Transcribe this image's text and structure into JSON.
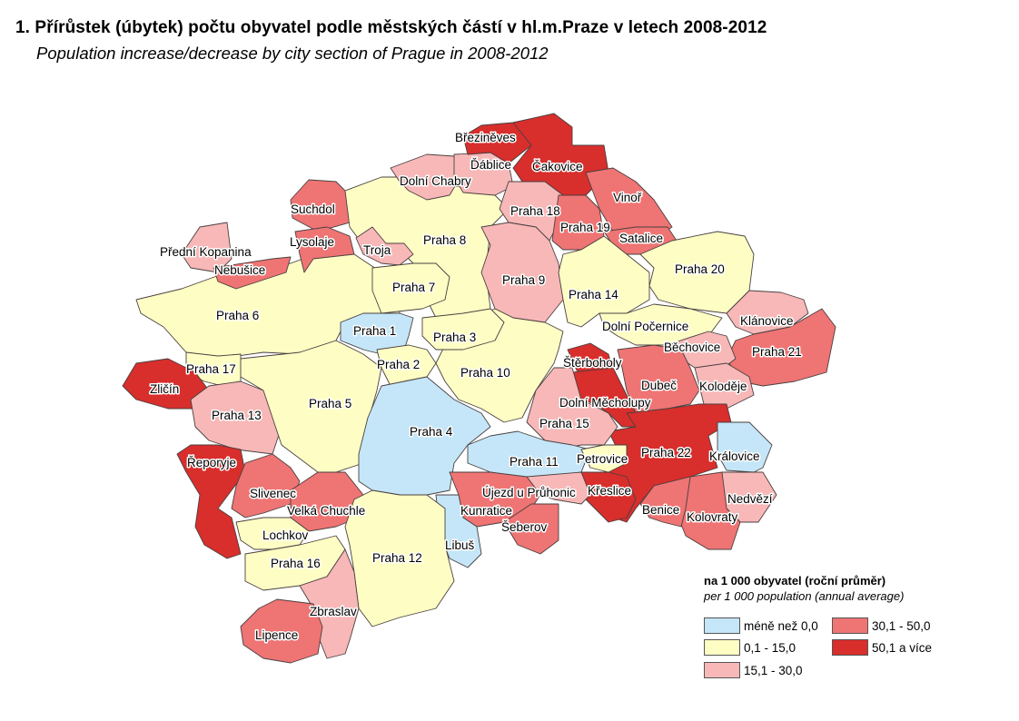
{
  "title": "1. Přírůstek (úbytek) počtu obyvatel podle městských částí v hl.m.Praze v letech 2008-2012",
  "subtitle": "Population increase/decrease by city section of Prague in 2008-2012",
  "legend": {
    "title": "na 1 000 obyvatel (roční průměr)",
    "subtitle": "per 1 000 population (annual average)",
    "classes": [
      {
        "label": "méně než 0,0",
        "color": "#c4e6f8"
      },
      {
        "label": "0,1 - 15,0",
        "color": "#fefec4"
      },
      {
        "label": "15,1 - 30,0",
        "color": "#f8b8b8"
      },
      {
        "label": "30,1 - 50,0",
        "color": "#ef7474"
      },
      {
        "label": "50,1 a více",
        "color": "#d82e2c"
      }
    ]
  },
  "districts": [
    {
      "name": "Praha 6",
      "class": 1
    },
    {
      "name": "Přední Kopanina",
      "class": 2
    },
    {
      "name": "Nebušice",
      "class": 3
    },
    {
      "name": "Suchdol",
      "class": 3
    },
    {
      "name": "Lysolaje",
      "class": 3
    },
    {
      "name": "Praha 8",
      "class": 1
    },
    {
      "name": "Troja",
      "class": 2
    },
    {
      "name": "Praha 7",
      "class": 1
    },
    {
      "name": "Dolní Chabry",
      "class": 2
    },
    {
      "name": "Ďáblice",
      "class": 2
    },
    {
      "name": "Březiněves",
      "class": 4
    },
    {
      "name": "Čakovice",
      "class": 4
    },
    {
      "name": "Praha 18",
      "class": 2
    },
    {
      "name": "Praha 9",
      "class": 2
    },
    {
      "name": "Praha 19",
      "class": 3
    },
    {
      "name": "Vinoř",
      "class": 3
    },
    {
      "name": "Satalice",
      "class": 3
    },
    {
      "name": "Praha 20",
      "class": 1
    },
    {
      "name": "Praha 14",
      "class": 1
    },
    {
      "name": "Klánovice",
      "class": 2
    },
    {
      "name": "Praha 21",
      "class": 3
    },
    {
      "name": "Dolní Počernice",
      "class": 1
    },
    {
      "name": "Běchovice",
      "class": 2
    },
    {
      "name": "Koloděje",
      "class": 2
    },
    {
      "name": "Dubeč",
      "class": 3
    },
    {
      "name": "Štěrboholy",
      "class": 4
    },
    {
      "name": "Dolní Měcholupy",
      "class": 4
    },
    {
      "name": "Praha 22",
      "class": 4
    },
    {
      "name": "Královice",
      "class": 0
    },
    {
      "name": "Nedvězí",
      "class": 2
    },
    {
      "name": "Kolovraty",
      "class": 3
    },
    {
      "name": "Benice",
      "class": 3
    },
    {
      "name": "Praha 10",
      "class": 1
    },
    {
      "name": "Praha 3",
      "class": 1
    },
    {
      "name": "Praha 1",
      "class": 0
    },
    {
      "name": "Praha 2",
      "class": 1
    },
    {
      "name": "Praha 17",
      "class": 1
    },
    {
      "name": "Zličín",
      "class": 4
    },
    {
      "name": "Praha 13",
      "class": 2
    },
    {
      "name": "Praha 5",
      "class": 1
    },
    {
      "name": "Praha 4",
      "class": 0
    },
    {
      "name": "Praha 15",
      "class": 2
    },
    {
      "name": "Praha 11",
      "class": 0
    },
    {
      "name": "Petrovice",
      "class": 1
    },
    {
      "name": "Křeslice",
      "class": 4
    },
    {
      "name": "Újezd u Průhonic",
      "class": 2
    },
    {
      "name": "Kunratice",
      "class": 3
    },
    {
      "name": "Šeberov",
      "class": 3
    },
    {
      "name": "Libuš",
      "class": 0
    },
    {
      "name": "Řeporyje",
      "class": 4
    },
    {
      "name": "Slivenec",
      "class": 3
    },
    {
      "name": "Velká Chuchle",
      "class": 3
    },
    {
      "name": "Lochkov",
      "class": 1
    },
    {
      "name": "Praha 16",
      "class": 1
    },
    {
      "name": "Praha 12",
      "class": 1
    },
    {
      "name": "Zbraslav",
      "class": 2
    },
    {
      "name": "Lipence",
      "class": 3
    }
  ]
}
